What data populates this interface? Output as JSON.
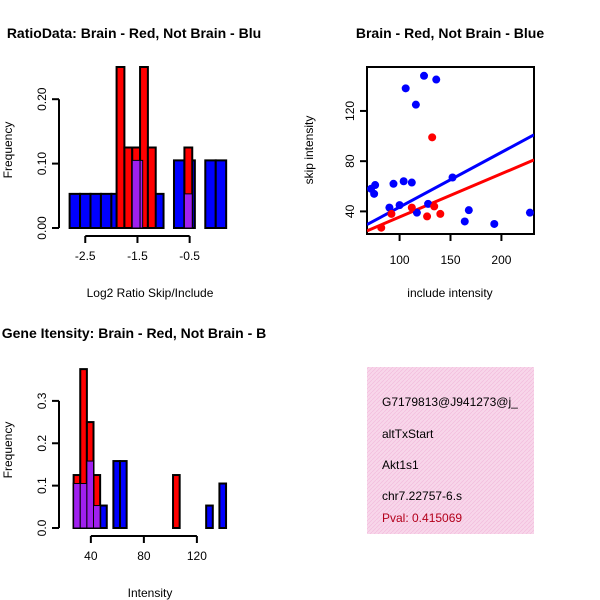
{
  "colors": {
    "red": "#ff0000",
    "blue": "#0000ff",
    "overlap": "#a020f0",
    "info_bg": "#f8d6ea",
    "pval": "#b3001b"
  },
  "chart_data": [
    {
      "id": "ratio",
      "type": "bar",
      "title": "RatioData: Brain - Red, Not Brain - Blu",
      "xlabel": "Log2 Ratio Skip/Include",
      "ylabel": "Frequency",
      "xlim": [
        -2.85,
        0.35
      ],
      "ylim": [
        0,
        0.25
      ],
      "xticks": [
        -2.5,
        -1.5,
        -0.5
      ],
      "xtick_labels": [
        "-2.5",
        "-1.5",
        "-0.5"
      ],
      "yticks": [
        0,
        0.1,
        0.2
      ],
      "ytick_labels": [
        "0.00",
        "0.10",
        "0.20"
      ],
      "series": [
        {
          "name": "Not Brain",
          "color": "blue",
          "bins": [
            {
              "x0": -2.8,
              "x1": -2.6,
              "y": 0.053
            },
            {
              "x0": -2.6,
              "x1": -2.4,
              "y": 0.053
            },
            {
              "x0": -2.4,
              "x1": -2.2,
              "y": 0.053
            },
            {
              "x0": -2.2,
              "x1": -2.0,
              "y": 0.053
            },
            {
              "x0": -2.0,
              "x1": -1.8,
              "y": 0.053
            },
            {
              "x0": -1.6,
              "x1": -1.4,
              "y": 0.105
            },
            {
              "x0": -1.2,
              "x1": -1.0,
              "y": 0.053
            },
            {
              "x0": -0.8,
              "x1": -0.6,
              "y": 0.105
            },
            {
              "x0": -0.6,
              "x1": -0.4,
              "y": 0.105
            },
            {
              "x0": -0.2,
              "x1": 0.0,
              "y": 0.105
            },
            {
              "x0": 0.0,
              "x1": 0.2,
              "y": 0.105
            }
          ]
        },
        {
          "name": "Brain",
          "color": "red",
          "bins": [
            {
              "x0": -1.9,
              "x1": -1.75,
              "y": 0.25
            },
            {
              "x0": -1.75,
              "x1": -1.6,
              "y": 0.125
            },
            {
              "x0": -1.6,
              "x1": -1.45,
              "y": 0.125
            },
            {
              "x0": -1.45,
              "x1": -1.3,
              "y": 0.25
            },
            {
              "x0": -1.3,
              "x1": -1.15,
              "y": 0.125
            },
            {
              "x0": -0.6,
              "x1": -0.45,
              "y": 0.125
            }
          ]
        },
        {
          "name": "Overlap",
          "color": "overlap",
          "bins": [
            {
              "x0": -1.6,
              "x1": -1.45,
              "y": 0.105
            },
            {
              "x0": -1.45,
              "x1": -1.4,
              "y": 0.105
            },
            {
              "x0": -0.6,
              "x1": -0.45,
              "y": 0.053
            }
          ]
        }
      ]
    },
    {
      "id": "scatter",
      "type": "scatter",
      "title": "Brain - Red, Not Brain - Blue",
      "xlabel": "include intensity",
      "ylabel": "skip intensity",
      "xlim": [
        68,
        232
      ],
      "ylim": [
        22,
        155
      ],
      "xticks": [
        100,
        150,
        200
      ],
      "xtick_labels": [
        "100",
        "150",
        "200"
      ],
      "yticks": [
        40,
        80,
        120
      ],
      "ytick_labels": [
        "40",
        "80",
        "120"
      ],
      "series": [
        {
          "name": "Not Brain",
          "color": "blue",
          "points": [
            [
              72,
              58
            ],
            [
              75,
              54
            ],
            [
              76,
              61
            ],
            [
              90,
              43
            ],
            [
              94,
              62
            ],
            [
              100,
              45
            ],
            [
              104,
              64
            ],
            [
              106,
              138
            ],
            [
              112,
              63
            ],
            [
              116,
              125
            ],
            [
              117,
              39
            ],
            [
              124,
              148
            ],
            [
              128,
              46
            ],
            [
              136,
              145
            ],
            [
              152,
              67
            ],
            [
              164,
              32
            ],
            [
              168,
              41
            ],
            [
              193,
              30
            ],
            [
              228,
              39
            ]
          ],
          "fit": [
            [
              68,
              29.5
            ],
            [
              232,
              101
            ]
          ]
        },
        {
          "name": "Brain",
          "color": "red",
          "points": [
            [
              82,
              27
            ],
            [
              92,
              38
            ],
            [
              112,
              43
            ],
            [
              127,
              36
            ],
            [
              132,
              99
            ],
            [
              134,
              44
            ],
            [
              140,
              38
            ]
          ],
          "fit": [
            [
              68,
              24.5
            ],
            [
              232,
              81
            ]
          ]
        }
      ]
    },
    {
      "id": "intensity",
      "type": "bar",
      "title": "Gene Itensity: Brain - Red, Not Brain - B",
      "xlabel": "Intensity",
      "ylabel": "Frequency",
      "xlim": [
        22,
        148
      ],
      "ylim": [
        0,
        0.38
      ],
      "xticks": [
        40,
        80,
        120
      ],
      "xtick_labels": [
        "40",
        "80",
        "120"
      ],
      "yticks": [
        0,
        0.1,
        0.2,
        0.3
      ],
      "ytick_labels": [
        "0.0",
        "0.1",
        "0.2",
        "0.3"
      ],
      "series": [
        {
          "name": "Not Brain",
          "color": "blue",
          "bins": [
            {
              "x0": 27,
              "x1": 32,
              "y": 0.105
            },
            {
              "x0": 32,
              "x1": 37,
              "y": 0.105
            },
            {
              "x0": 37,
              "x1": 42,
              "y": 0.158
            },
            {
              "x0": 42,
              "x1": 47,
              "y": 0.053
            },
            {
              "x0": 47,
              "x1": 52,
              "y": 0.053
            },
            {
              "x0": 57,
              "x1": 62,
              "y": 0.158
            },
            {
              "x0": 62,
              "x1": 67,
              "y": 0.158
            },
            {
              "x0": 127,
              "x1": 132,
              "y": 0.053
            },
            {
              "x0": 137,
              "x1": 142,
              "y": 0.105
            }
          ]
        },
        {
          "name": "Brain",
          "color": "red",
          "bins": [
            {
              "x0": 27,
              "x1": 32,
              "y": 0.125
            },
            {
              "x0": 32,
              "x1": 37,
              "y": 0.375
            },
            {
              "x0": 37,
              "x1": 42,
              "y": 0.25
            },
            {
              "x0": 42,
              "x1": 47,
              "y": 0.125
            },
            {
              "x0": 102,
              "x1": 107,
              "y": 0.125
            }
          ]
        },
        {
          "name": "Overlap",
          "color": "overlap",
          "bins": [
            {
              "x0": 27,
              "x1": 32,
              "y": 0.105
            },
            {
              "x0": 32,
              "x1": 37,
              "y": 0.105
            },
            {
              "x0": 37,
              "x1": 42,
              "y": 0.158
            },
            {
              "x0": 42,
              "x1": 47,
              "y": 0.053
            }
          ]
        }
      ]
    }
  ],
  "info": {
    "id_label": "G7179813@J941273@j_",
    "event_type": "altTxStart",
    "gene": "Akt1s1",
    "location": "chr7.22757-6.s",
    "pval": "Pval: 0.415069"
  }
}
